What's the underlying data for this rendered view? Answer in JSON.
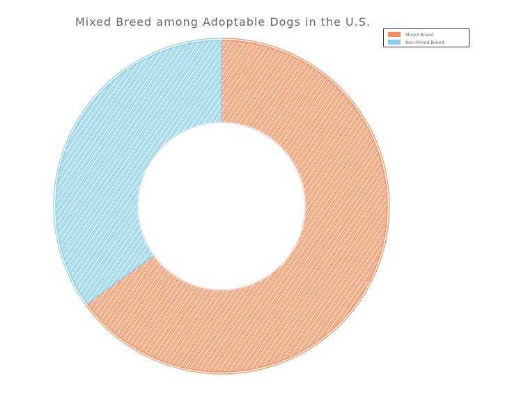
{
  "chart_data": {
    "type": "pie",
    "variant": "donut",
    "title": "Mixed Breed among Adoptable Dogs in the U.S.",
    "categories": [
      "Mixed Breed",
      "Non-Mixed Breed"
    ],
    "values": [
      65,
      35
    ],
    "colors": [
      "#ff8a55",
      "#87ceeb"
    ],
    "legend": {
      "position": "top-right",
      "entries": [
        "Mixed Breed",
        "Non-Mixed Breed"
      ]
    }
  }
}
